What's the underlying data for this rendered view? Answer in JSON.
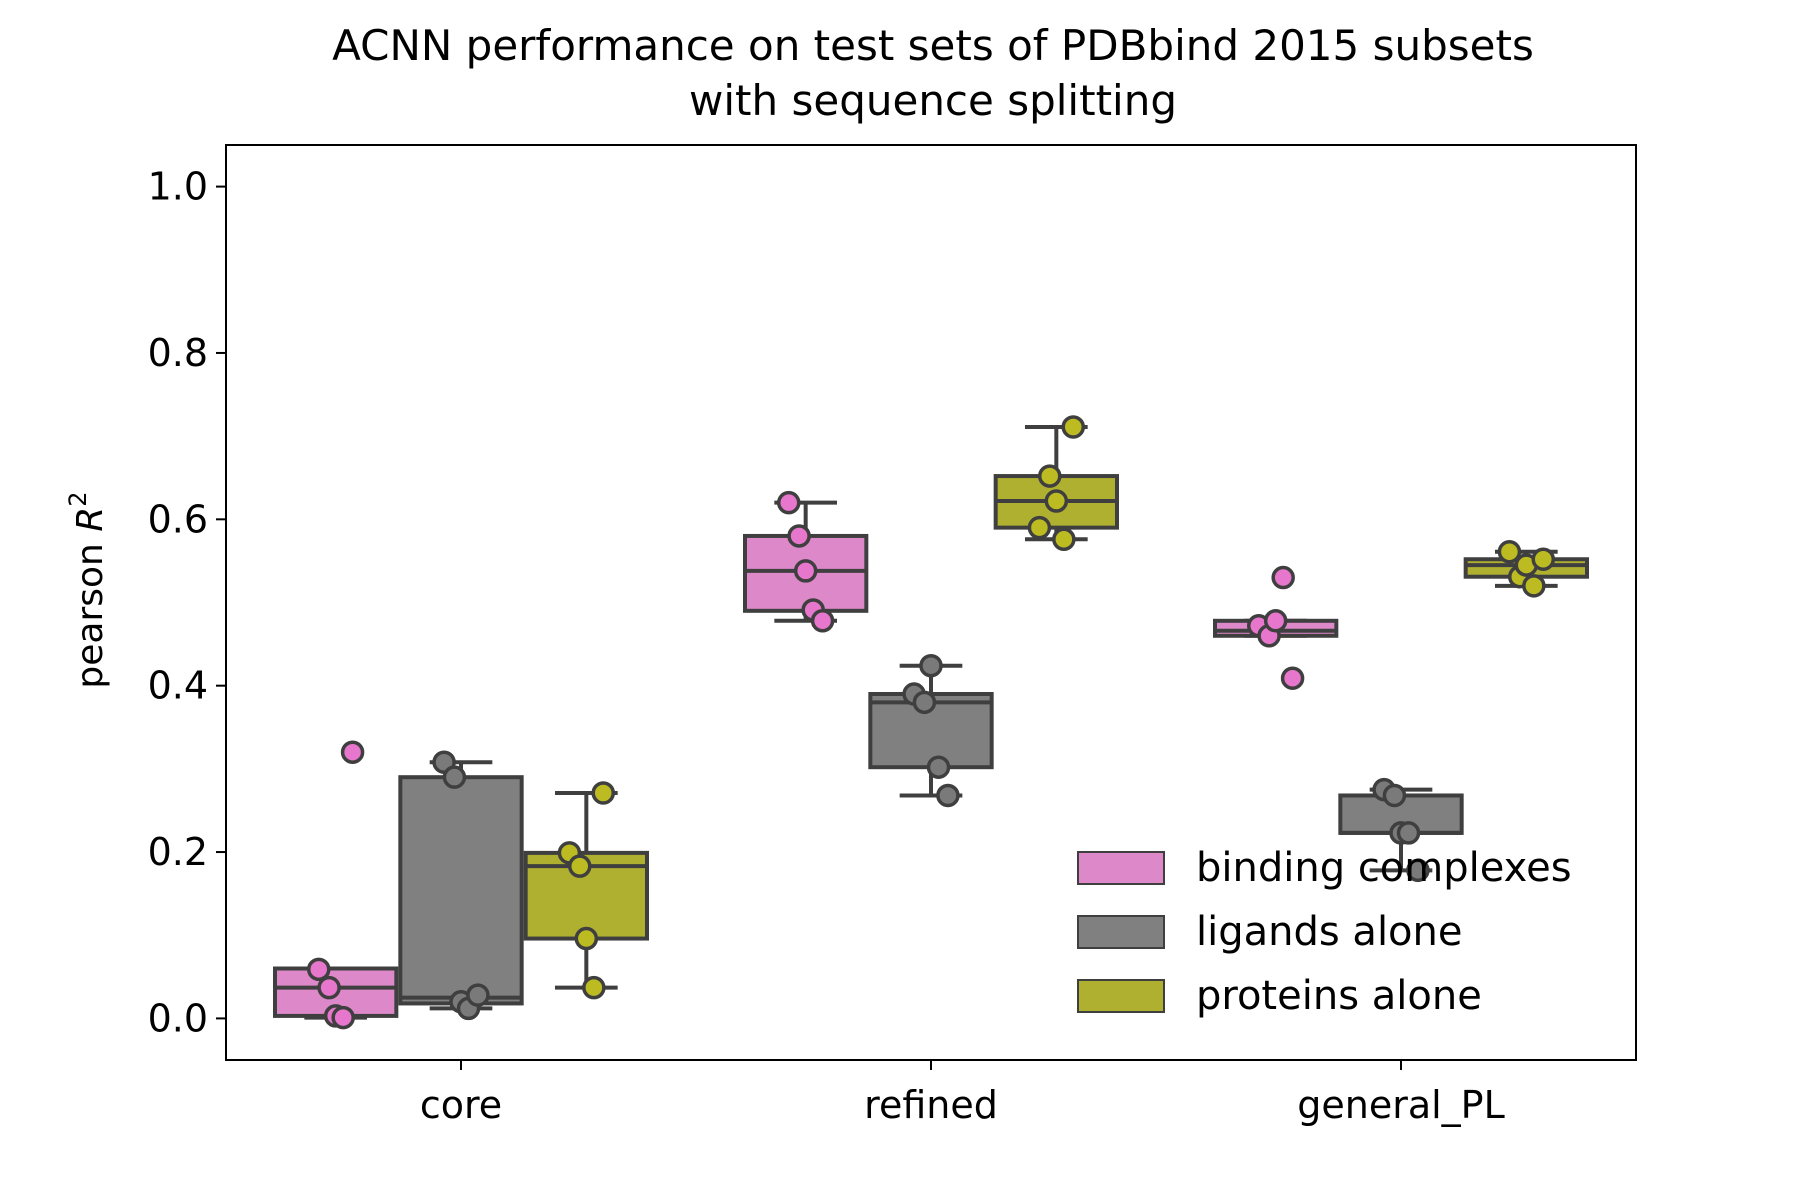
{
  "chart_data": {
    "type": "box",
    "title": "ACNN performance on test sets of PDBbind 2015 subsets",
    "subtitle": "with sequence splitting",
    "ylabel_prefix": "pearson ",
    "ylabel_var": "R",
    "ylabel_sup": "2",
    "xlabel": "",
    "ylim": [
      -0.05,
      1.05
    ],
    "yticks": [
      0.0,
      0.2,
      0.4,
      0.6,
      0.8,
      1.0
    ],
    "ytick_labels": [
      "0.0",
      "0.2",
      "0.4",
      "0.6",
      "0.8",
      "1.0"
    ],
    "categories": [
      "core",
      "refined",
      "general_PL"
    ],
    "legend_position": "lower-right",
    "series": [
      {
        "name": "binding complexes",
        "color": "#dd88c8",
        "point_color": "#e677cc",
        "groups": [
          {
            "q1": 0.003,
            "median": 0.037,
            "q3": 0.06,
            "whisker_low": 0.001,
            "whisker_high": 0.06,
            "outliers": [
              0.32
            ],
            "points": [
              0.059,
              0.037,
              0.003,
              0.001,
              0.32
            ]
          },
          {
            "q1": 0.49,
            "median": 0.538,
            "q3": 0.58,
            "whisker_low": 0.478,
            "whisker_high": 0.62,
            "outliers": [],
            "points": [
              0.62,
              0.58,
              0.538,
              0.491,
              0.478
            ]
          },
          {
            "q1": 0.46,
            "median": 0.466,
            "q3": 0.478,
            "whisker_low": 0.46,
            "whisker_high": 0.478,
            "outliers": [
              0.53,
              0.409
            ],
            "points": [
              0.472,
              0.46,
              0.478,
              0.53,
              0.409
            ]
          }
        ]
      },
      {
        "name": "ligands alone",
        "color": "#808080",
        "point_color": "#7a7a7a",
        "groups": [
          {
            "q1": 0.018,
            "median": 0.025,
            "q3": 0.29,
            "whisker_low": 0.012,
            "whisker_high": 0.308,
            "outliers": [],
            "points": [
              0.308,
              0.29,
              0.02,
              0.012,
              0.028
            ]
          },
          {
            "q1": 0.302,
            "median": 0.38,
            "q3": 0.39,
            "whisker_low": 0.268,
            "whisker_high": 0.424,
            "outliers": [],
            "points": [
              0.39,
              0.38,
              0.424,
              0.302,
              0.268
            ]
          },
          {
            "q1": 0.223,
            "median": 0.223,
            "q3": 0.268,
            "whisker_low": 0.178,
            "whisker_high": 0.275,
            "outliers": [],
            "points": [
              0.275,
              0.268,
              0.223,
              0.223,
              0.178
            ]
          }
        ]
      },
      {
        "name": "proteins alone",
        "color": "#b0b030",
        "point_color": "#bcbc22",
        "groups": [
          {
            "q1": 0.096,
            "median": 0.183,
            "q3": 0.199,
            "whisker_low": 0.037,
            "whisker_high": 0.271,
            "outliers": [],
            "points": [
              0.199,
              0.183,
              0.096,
              0.037,
              0.271
            ]
          },
          {
            "q1": 0.59,
            "median": 0.622,
            "q3": 0.652,
            "whisker_low": 0.576,
            "whisker_high": 0.711,
            "outliers": [],
            "points": [
              0.59,
              0.652,
              0.622,
              0.576,
              0.711
            ]
          },
          {
            "q1": 0.531,
            "median": 0.545,
            "q3": 0.552,
            "whisker_low": 0.52,
            "whisker_high": 0.561,
            "outliers": [],
            "points": [
              0.561,
              0.531,
              0.545,
              0.52,
              0.552
            ]
          }
        ]
      }
    ]
  }
}
